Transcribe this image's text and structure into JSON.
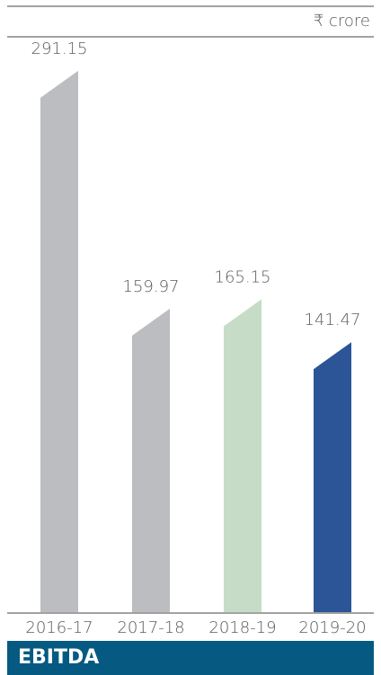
{
  "chart_data": {
    "type": "bar",
    "title": "EBITDA",
    "unit": "₹ crore",
    "categories": [
      "2016-17",
      "2017-18",
      "2018-19",
      "2019-20"
    ],
    "values": [
      291.15,
      159.97,
      165.15,
      141.47
    ],
    "value_labels": [
      "291.15",
      "159.97",
      "165.15",
      "141.47"
    ],
    "colors": [
      "#bcbdc0",
      "#bcbdc0",
      "#c6dcc6",
      "#2b5597"
    ],
    "ylim": [
      0,
      300
    ]
  }
}
